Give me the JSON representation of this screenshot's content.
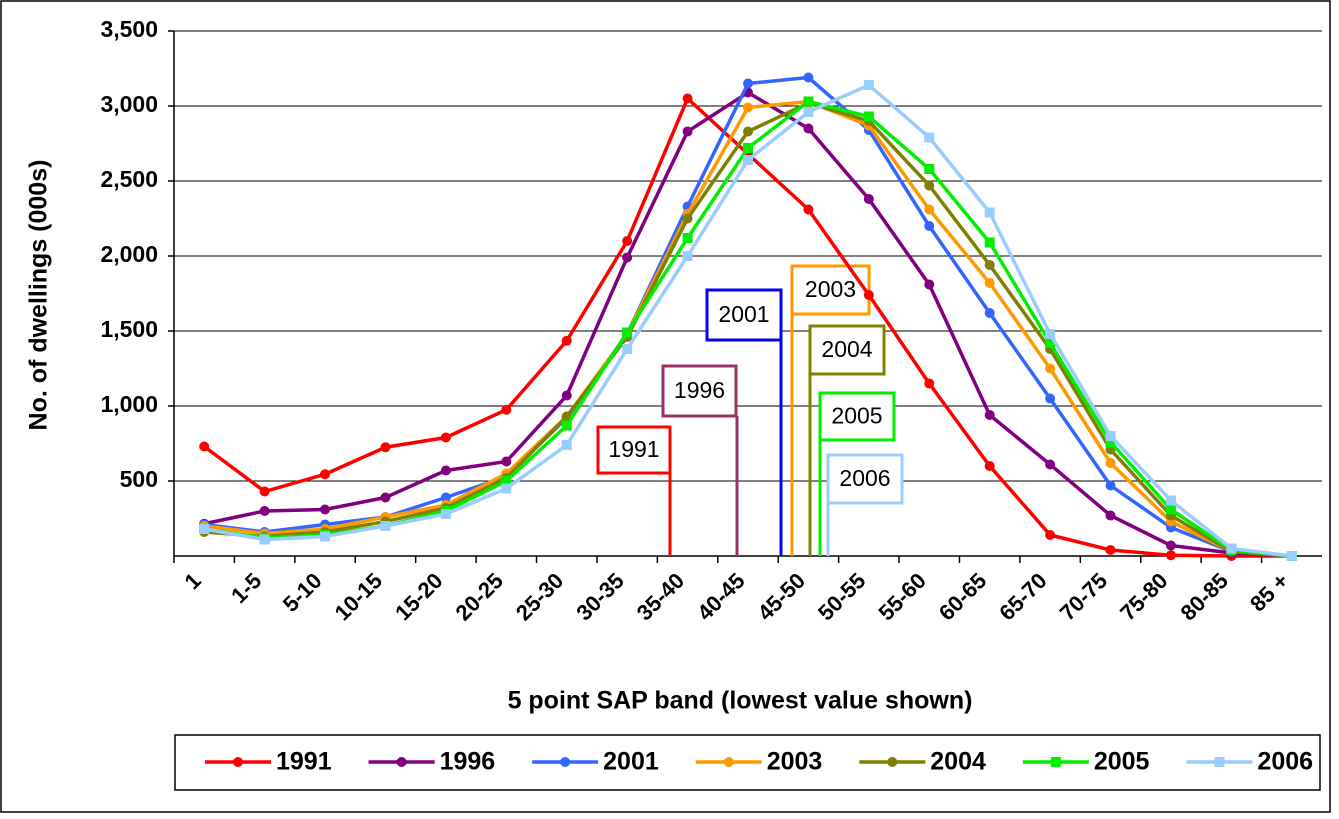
{
  "chart_data": {
    "type": "line",
    "y_label": "No. of dwellings (000s)",
    "x_label": "5 point SAP band (lowest value shown)",
    "categories": [
      "1",
      "1-5",
      "5-10",
      "10-15",
      "15-20",
      "20-25",
      "25-30",
      "30-35",
      "35-40",
      "40-45",
      "45-50",
      "50-55",
      "55-60",
      "60-65",
      "65-70",
      "70-75",
      "75-80",
      "80-85",
      "85 +"
    ],
    "ylim": [
      0,
      3500
    ],
    "yticks": [
      500,
      {
        "value": 1000,
        "label": "1,000"
      },
      {
        "value": 1500,
        "label": "1,500"
      },
      {
        "value": 2000,
        "label": "2,000"
      },
      {
        "value": 2500,
        "label": "2,500"
      },
      {
        "value": 3000,
        "label": "3,000"
      },
      {
        "value": 3500,
        "label": "3,500"
      }
    ],
    "grid": true,
    "legend": "bottom",
    "series": [
      {
        "name": "1991",
        "color": "#ff0000",
        "marker": "circle",
        "values": [
          730,
          430,
          545,
          725,
          790,
          975,
          1435,
          2100,
          3050,
          2680,
          2310,
          1740,
          1150,
          600,
          140,
          40,
          5,
          0,
          0
        ]
      },
      {
        "name": "1996",
        "color": "#800080",
        "marker": "circle",
        "values": [
          215,
          300,
          310,
          390,
          570,
          630,
          1070,
          1990,
          2830,
          3090,
          2850,
          2380,
          1810,
          940,
          610,
          270,
          70,
          20,
          0
        ]
      },
      {
        "name": "2001",
        "color": "#3366ff",
        "marker": "circle",
        "values": [
          210,
          160,
          210,
          260,
          390,
          530,
          920,
          1480,
          2330,
          3150,
          3190,
          2840,
          2200,
          1620,
          1050,
          470,
          190,
          30,
          0
        ]
      },
      {
        "name": "2003",
        "color": "#ff9900",
        "marker": "circle",
        "values": [
          200,
          150,
          180,
          260,
          340,
          550,
          930,
          1480,
          2280,
          2990,
          3030,
          2870,
          2310,
          1820,
          1250,
          620,
          230,
          30,
          0
        ]
      },
      {
        "name": "2004",
        "color": "#808000",
        "marker": "circle",
        "values": [
          160,
          130,
          160,
          230,
          320,
          520,
          930,
          1460,
          2250,
          2830,
          3020,
          2900,
          2470,
          1940,
          1380,
          710,
          270,
          30,
          0
        ]
      },
      {
        "name": "2005",
        "color": "#00ee00",
        "marker": "square",
        "values": [
          180,
          120,
          140,
          200,
          300,
          500,
          870,
          1490,
          2120,
          2720,
          3030,
          2930,
          2580,
          2090,
          1420,
          760,
          310,
          40,
          0
        ]
      },
      {
        "name": "2006",
        "color": "#99ccff",
        "marker": "square",
        "values": [
          180,
          110,
          130,
          200,
          280,
          450,
          740,
          1380,
          2000,
          2640,
          2960,
          3140,
          2790,
          2290,
          1480,
          800,
          370,
          50,
          0
        ]
      }
    ],
    "annotations": [
      {
        "text": "1991",
        "color": "#ff0000"
      },
      {
        "text": "1996",
        "color": "#993366"
      },
      {
        "text": "2001",
        "color": "#0000ff"
      },
      {
        "text": "2003",
        "color": "#ff9900"
      },
      {
        "text": "2004",
        "color": "#808000"
      },
      {
        "text": "2005",
        "color": "#00ee00"
      },
      {
        "text": "2006",
        "color": "#99ccff"
      }
    ]
  }
}
